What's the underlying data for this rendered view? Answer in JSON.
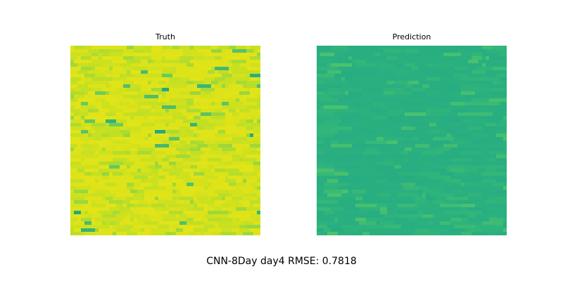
{
  "chart_data": [
    {
      "type": "heatmap",
      "title": "Truth",
      "grid": "off",
      "axes": "off",
      "colormap": "viridis",
      "palette": {
        "dominant": "#e2e418",
        "secondary": "#bfdf25",
        "light": "#d6e21a",
        "low": "#6ccd5a",
        "min": "#22a884"
      }
    },
    {
      "type": "heatmap",
      "title": "Prediction",
      "grid": "off",
      "axes": "off",
      "colormap": "viridis",
      "palette": {
        "dominant": "#2ab07f",
        "secondary": "#33b67a",
        "light": "#52c569",
        "low": "#24aa83",
        "min": "#1fa187"
      }
    }
  ],
  "caption": "CNN-8Day day4 RMSE: 0.7818"
}
